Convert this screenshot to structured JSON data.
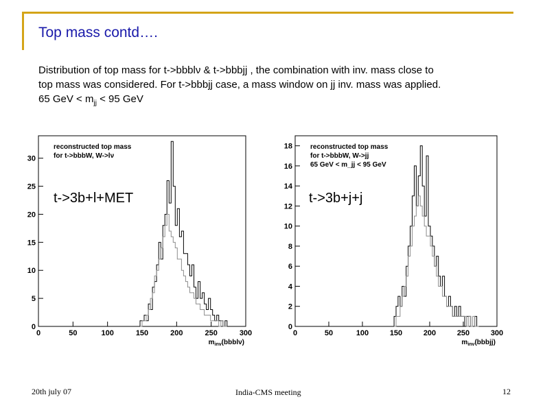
{
  "slide": {
    "title": "Top mass contd….",
    "body_line1": "Distribution of top mass for t->bbblν & t->bbbjj , the combination with inv. mass close to",
    "body_line2": "top mass was considered. For t->bbbjj case, a mass window on jj inv. mass was applied.",
    "body_line3_pre": "65 GeV < m",
    "body_line3_sub": "jj",
    "body_line3_post": " < 95 GeV"
  },
  "footer": {
    "date": "20th july 07",
    "meeting": "India-CMS meeting",
    "page": "12"
  },
  "chart_data": [
    {
      "type": "histogram",
      "label": "t->3b+l+MET",
      "legend_lines": [
        "reconstructed top mass",
        "for t->bbbW, W->lν"
      ],
      "xlabel_main": "m",
      "xlabel_sub": "inv",
      "xlabel_tail": "(bbblν)",
      "xlim": [
        0,
        300
      ],
      "ylim": [
        0,
        34
      ],
      "xticks": [
        0,
        50,
        100,
        150,
        200,
        250,
        300
      ],
      "yticks": [
        0,
        5,
        10,
        15,
        20,
        25,
        30
      ],
      "bin_width": 3,
      "bins_start": 147,
      "series": [
        {
          "values": [
            1,
            1,
            2,
            1,
            4,
            3,
            7,
            8,
            11,
            15,
            12,
            18,
            20,
            26,
            22,
            33,
            25,
            18,
            21,
            16,
            17,
            13,
            13,
            11,
            9,
            11,
            7,
            5,
            8,
            5,
            6,
            4,
            3,
            5,
            3,
            2,
            1,
            2,
            1,
            1,
            0,
            1
          ]
        },
        {
          "values": [
            0,
            1,
            1,
            2,
            3,
            5,
            6,
            9,
            10,
            12,
            14,
            16,
            18,
            20,
            17,
            16,
            15,
            14,
            12,
            12,
            10,
            9,
            8,
            7,
            6,
            6,
            5,
            4,
            4,
            3,
            3,
            2,
            2,
            2,
            1,
            1,
            1,
            1,
            0,
            1,
            0,
            0
          ]
        }
      ]
    },
    {
      "type": "histogram",
      "label": "t->3b+j+j",
      "legend_lines": [
        "reconstructed top mass",
        "for t->bbbW, W->jj",
        "65 GeV < m_jj < 95 GeV"
      ],
      "xlabel_main": "m",
      "xlabel_sub": "inv",
      "xlabel_tail": "(bbbjj)",
      "xlim": [
        0,
        300
      ],
      "ylim": [
        0,
        19
      ],
      "xticks": [
        0,
        50,
        100,
        150,
        200,
        250,
        300
      ],
      "yticks": [
        0,
        2,
        4,
        6,
        8,
        10,
        12,
        14,
        16,
        18
      ],
      "bin_width": 3,
      "bins_start": 147,
      "series": [
        {
          "values": [
            1,
            2,
            3,
            2,
            4,
            3,
            6,
            8,
            10,
            13,
            16,
            12,
            15,
            18,
            14,
            11,
            17,
            10,
            9,
            8,
            6,
            7,
            5,
            4,
            5,
            3,
            2,
            3,
            2,
            1,
            2,
            1,
            2,
            1,
            1,
            0,
            1,
            1,
            0,
            0,
            1,
            0
          ]
        },
        {
          "values": [
            0,
            1,
            1,
            2,
            3,
            4,
            5,
            7,
            8,
            10,
            11,
            12,
            13,
            12,
            11,
            10,
            9,
            9,
            8,
            7,
            6,
            5,
            4,
            4,
            3,
            3,
            2,
            2,
            2,
            1,
            1,
            1,
            1,
            1,
            1,
            1,
            0,
            1,
            0,
            1,
            0,
            0
          ]
        }
      ]
    }
  ]
}
